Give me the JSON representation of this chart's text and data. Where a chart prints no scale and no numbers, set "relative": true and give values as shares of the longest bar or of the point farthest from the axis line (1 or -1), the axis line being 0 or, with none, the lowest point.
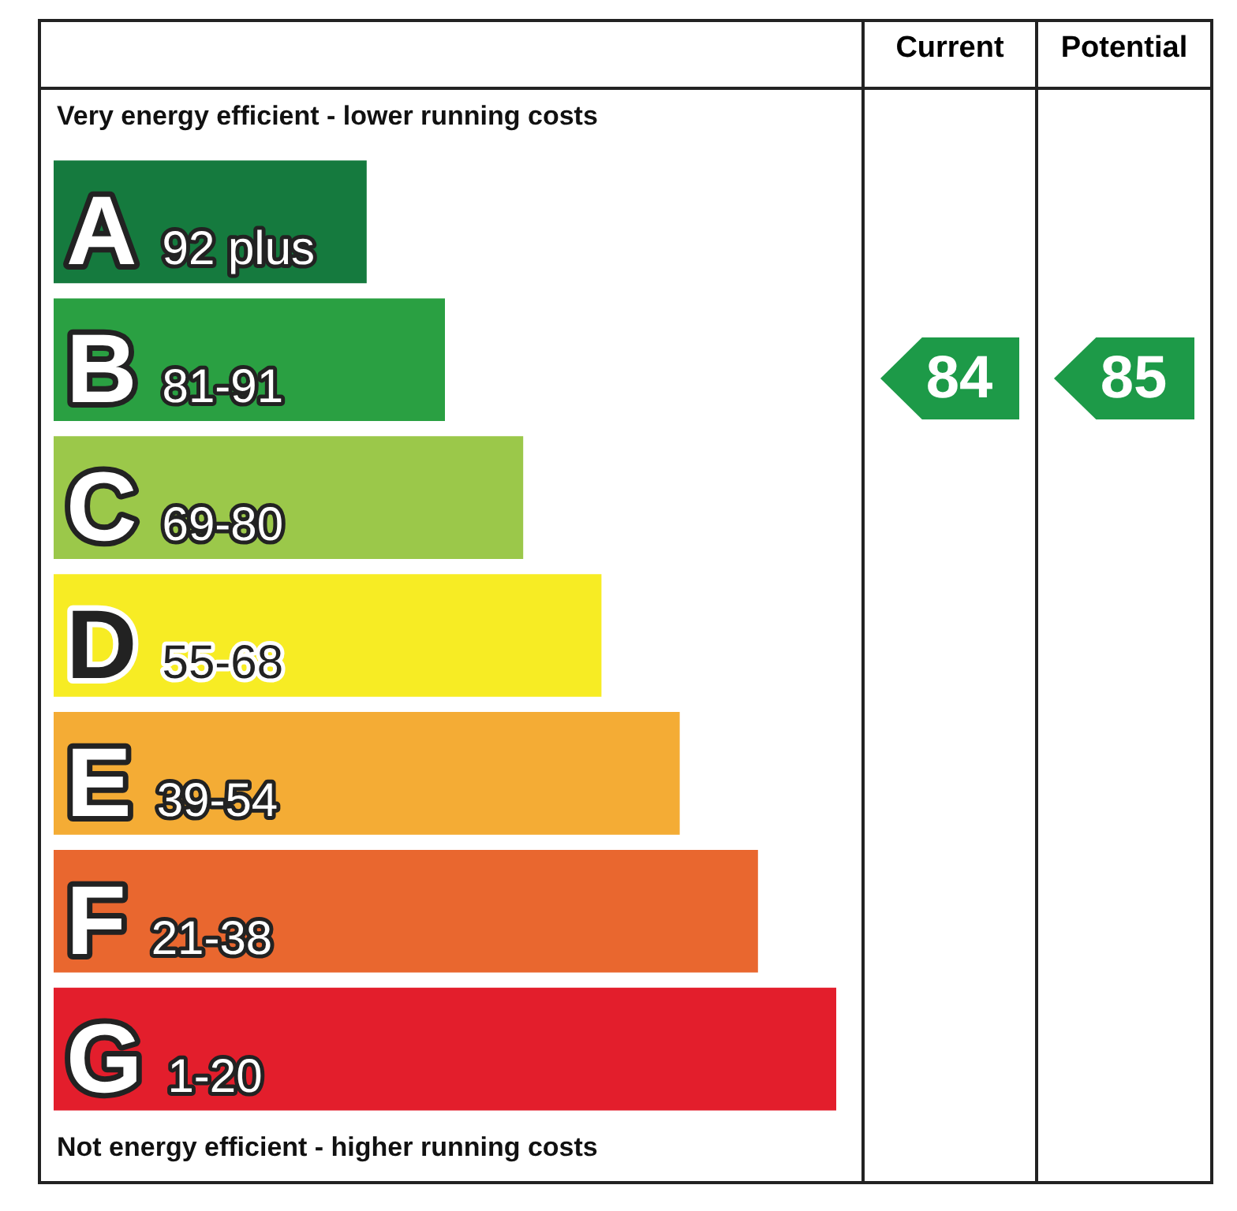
{
  "chart_data": {
    "type": "bar",
    "orientation": "horizontal",
    "relative": true,
    "categories": [
      "A 92 plus",
      "B 81-91",
      "C 69-80",
      "D 55-68",
      "E 39-54",
      "F 21-38",
      "G 1-20"
    ],
    "values": [
      0.4,
      0.5,
      0.6,
      0.7,
      0.8,
      0.9,
      1.0
    ],
    "colors": [
      "#157a3e",
      "#2aa042",
      "#9bc84a",
      "#f7ec24",
      "#f4ac35",
      "#e9672f",
      "#e31e2c"
    ],
    "legend": false,
    "tick_labels": false,
    "annotations": [
      "Current",
      "Potential",
      "Very energy efficient - lower running costs",
      "Not energy efficient - higher running costs",
      "84",
      "85"
    ]
  }
}
